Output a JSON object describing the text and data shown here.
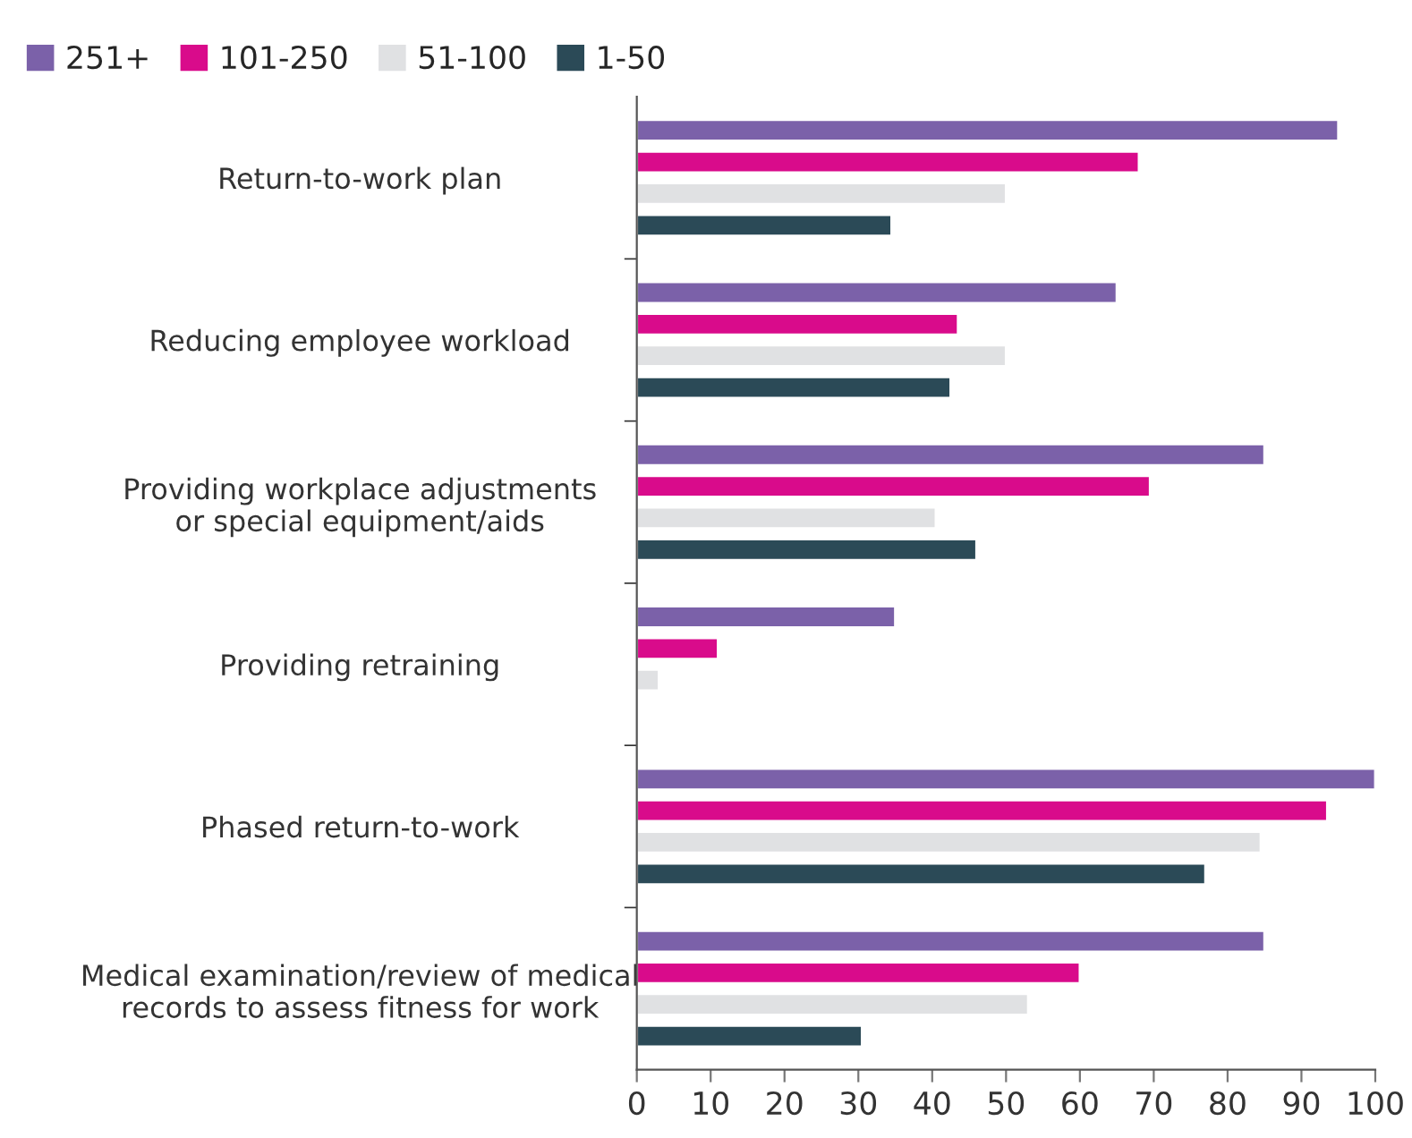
{
  "chart_data": {
    "type": "bar",
    "orientation": "horizontal",
    "categories": [
      "Return-to-work plan",
      "Reducing employee workload",
      "Providing workplace adjustments\nor special equipment/aids",
      "Providing retraining",
      "Phased return-to-work",
      "Medical examination/review of medical\nrecords to assess fitness for work"
    ],
    "series": [
      {
        "name": "251+",
        "color": "#7b61a9",
        "values": [
          95,
          65,
          85,
          35,
          100,
          85
        ]
      },
      {
        "name": "101-250",
        "color": "#d90b8b",
        "values": [
          68,
          43.5,
          69.5,
          11,
          93.5,
          60
        ]
      },
      {
        "name": "51-100",
        "color": "#e0e1e3",
        "values": [
          50,
          50,
          40.5,
          3,
          84.5,
          53
        ]
      },
      {
        "name": "1-50",
        "color": "#2b4a57",
        "values": [
          34.5,
          42.5,
          46,
          null,
          77,
          30.5
        ]
      }
    ],
    "xlim": [
      0,
      100
    ],
    "xticks": [
      0,
      10,
      20,
      30,
      40,
      50,
      60,
      70,
      80,
      90,
      100
    ],
    "legend": "top",
    "grid": false
  }
}
